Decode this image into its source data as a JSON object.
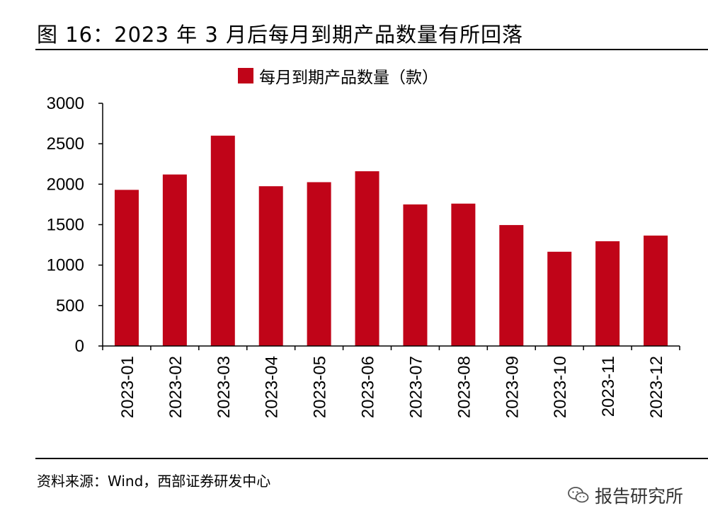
{
  "title": "图 16：2023 年 3 月后每月到期产品数量有所回落",
  "source": "资料来源：Wind，西部证券研发中心",
  "watermark": {
    "icon": "wechat-icon",
    "text": "报告研究所"
  },
  "colors": {
    "bar": "#c00418",
    "axis": "#000000",
    "text": "#000000"
  },
  "chart_data": {
    "type": "bar",
    "categories": [
      "2023-01",
      "2023-02",
      "2023-03",
      "2023-04",
      "2023-05",
      "2023-06",
      "2023-07",
      "2023-08",
      "2023-09",
      "2023-10",
      "2023-11",
      "2023-12"
    ],
    "series": [
      {
        "name": "每月到期产品数量（款）",
        "values": [
          1930,
          2120,
          2600,
          1975,
          2025,
          2160,
          1750,
          1760,
          1495,
          1165,
          1295,
          1365
        ]
      }
    ],
    "yticks": [
      "0",
      "500",
      "1000",
      "1500",
      "2000",
      "2500",
      "3000"
    ],
    "ylim": [
      0,
      3000
    ],
    "grid": false,
    "legend_position": "top-center"
  }
}
